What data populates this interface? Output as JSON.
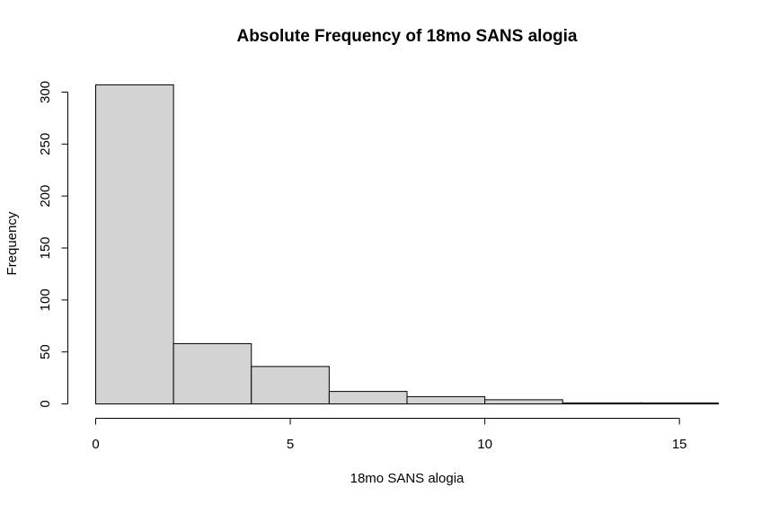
{
  "chart_data": {
    "type": "bar",
    "title": "Absolute Frequency of 18mo SANS alogia",
    "xlabel": "18mo SANS alogia",
    "ylabel": "Frequency",
    "bins": [
      {
        "start": 0,
        "end": 2,
        "count": 307
      },
      {
        "start": 2,
        "end": 4,
        "count": 58
      },
      {
        "start": 4,
        "end": 6,
        "count": 36
      },
      {
        "start": 6,
        "end": 8,
        "count": 12
      },
      {
        "start": 8,
        "end": 10,
        "count": 7
      },
      {
        "start": 10,
        "end": 12,
        "count": 4
      },
      {
        "start": 12,
        "end": 14,
        "count": 1
      },
      {
        "start": 14,
        "end": 16,
        "count": 1
      }
    ],
    "xlim": [
      0,
      16
    ],
    "ylim": [
      0,
      300
    ],
    "xticks": [
      0,
      5,
      10,
      15
    ],
    "yticks": [
      0,
      50,
      100,
      150,
      200,
      250,
      300
    ],
    "grid": false,
    "fill_color": "#d3d3d3",
    "stroke_color": "#000000"
  }
}
